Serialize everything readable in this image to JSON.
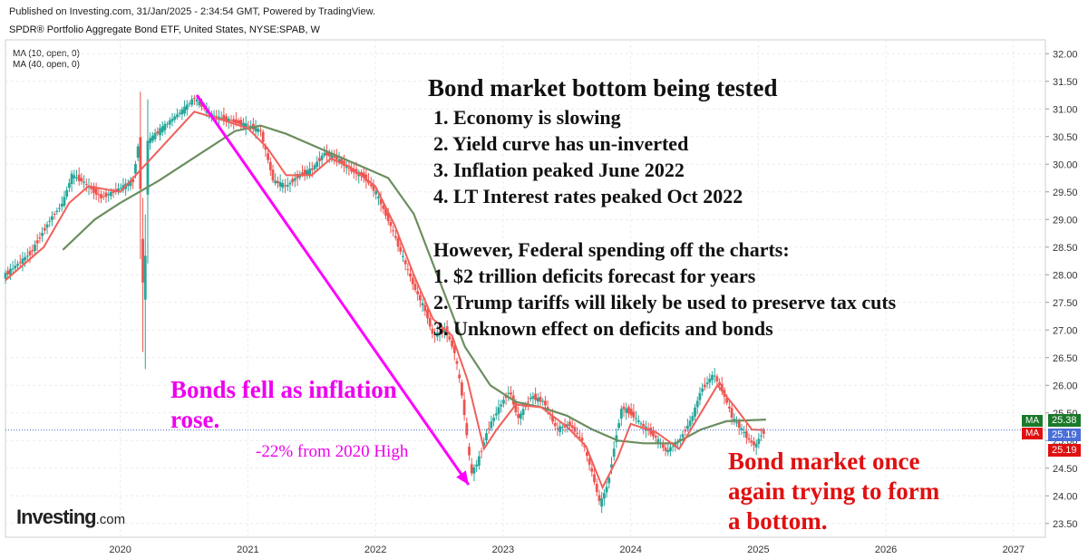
{
  "header": {
    "published": "Published on Investing.com, 31/Jan/2025 - 2:34:54 GMT, Powered by TradingView.",
    "subtitle": "SPDR® Portfolio Aggregate Bond ETF, United States, NYSE:SPAB, W"
  },
  "legend": {
    "ma10": "MA (10, open, 0)",
    "ma40": "MA (40, open, 0)"
  },
  "annotations": {
    "box_title": "Bond market bottom being tested",
    "box_points": [
      "1. Economy is slowing",
      "2. Yield curve has un-inverted",
      "3. Inflation peaked June 2022",
      "4. LT Interest rates peaked Oct 2022"
    ],
    "however_title": "However, Federal spending off the charts:",
    "however_points": [
      "1. $2 trillion deficits forecast for years",
      "2. Trump tariffs will likely be used to preserve tax cuts",
      "3. Unknown effect on deficits and bonds"
    ],
    "bonds_fell": [
      "Bonds fell as inflation",
      "rose."
    ],
    "drop": "-22% from 2020 High",
    "bottom": [
      "Bond market once",
      "again trying to form",
      "a bottom."
    ]
  },
  "logo": {
    "main": "Investing",
    "suffix": ".com"
  },
  "badges": {
    "ma_label": "MA",
    "ma40_value": "25.38",
    "price_value": "25.19",
    "ma10_value": "25.19"
  },
  "colors": {
    "up": "#26a69a",
    "down": "#ef5350",
    "ma10": "#f0605a",
    "ma40": "#6b8e5f",
    "arrow": "#ff00ff",
    "pink_text": "#ee00ee",
    "red_text": "#e01010",
    "ma40_badge": "#1a7a2a",
    "price_badge": "#4a6fd8",
    "ma10_badge": "#e01010"
  },
  "chart_data": {
    "type": "candlestick",
    "title": "SPDR® Portfolio Aggregate Bond ETF, United States, NYSE:SPAB, W",
    "ylim": [
      23.25,
      32.25
    ],
    "xlim": [
      2019.1,
      2027.25
    ],
    "y_ticks": [
      "23.50",
      "24.00",
      "24.50",
      "25.00",
      "25.50",
      "26.00",
      "26.50",
      "27.00",
      "27.50",
      "28.00",
      "28.50",
      "29.00",
      "29.50",
      "30.00",
      "30.50",
      "31.00",
      "31.50",
      "32.00"
    ],
    "x_ticks": [
      {
        "t": 2020,
        "label": "2020"
      },
      {
        "t": 2021,
        "label": "2021"
      },
      {
        "t": 2022,
        "label": "2022"
      },
      {
        "t": 2023,
        "label": "2023"
      },
      {
        "t": 2024,
        "label": "2024"
      },
      {
        "t": 2025,
        "label": "2025"
      },
      {
        "t": 2026,
        "label": "2026"
      },
      {
        "t": 2027,
        "label": "2027"
      }
    ],
    "last_price": 25.19,
    "price_path": [
      [
        2019.1,
        28.0
      ],
      [
        2019.3,
        28.4
      ],
      [
        2019.45,
        29.0
      ],
      [
        2019.55,
        29.3
      ],
      [
        2019.62,
        29.8
      ],
      [
        2019.7,
        29.7
      ],
      [
        2019.85,
        29.4
      ],
      [
        2019.95,
        29.5
      ],
      [
        2020.1,
        29.7
      ],
      [
        2020.15,
        30.5
      ],
      [
        2020.17,
        28.1
      ],
      [
        2020.19,
        27.4
      ],
      [
        2020.21,
        30.4
      ],
      [
        2020.35,
        30.7
      ],
      [
        2020.5,
        31.0
      ],
      [
        2020.58,
        31.2
      ],
      [
        2020.7,
        30.9
      ],
      [
        2020.85,
        30.8
      ],
      [
        2021.0,
        30.7
      ],
      [
        2021.1,
        30.6
      ],
      [
        2021.2,
        29.7
      ],
      [
        2021.3,
        29.6
      ],
      [
        2021.4,
        29.8
      ],
      [
        2021.5,
        29.9
      ],
      [
        2021.6,
        30.2
      ],
      [
        2021.7,
        30.1
      ],
      [
        2021.8,
        29.9
      ],
      [
        2021.9,
        29.8
      ],
      [
        2022.0,
        29.5
      ],
      [
        2022.1,
        29.0
      ],
      [
        2022.2,
        28.4
      ],
      [
        2022.3,
        27.8
      ],
      [
        2022.4,
        27.3
      ],
      [
        2022.45,
        26.9
      ],
      [
        2022.55,
        27.0
      ],
      [
        2022.62,
        26.6
      ],
      [
        2022.68,
        25.8
      ],
      [
        2022.75,
        24.4
      ],
      [
        2022.8,
        24.6
      ],
      [
        2022.88,
        25.2
      ],
      [
        2022.97,
        25.6
      ],
      [
        2023.05,
        25.9
      ],
      [
        2023.12,
        25.4
      ],
      [
        2023.22,
        25.8
      ],
      [
        2023.32,
        25.7
      ],
      [
        2023.42,
        25.2
      ],
      [
        2023.52,
        25.3
      ],
      [
        2023.62,
        25.0
      ],
      [
        2023.7,
        24.4
      ],
      [
        2023.76,
        23.85
      ],
      [
        2023.82,
        24.2
      ],
      [
        2023.88,
        25.0
      ],
      [
        2023.93,
        25.6
      ],
      [
        2024.0,
        25.5
      ],
      [
        2024.08,
        25.3
      ],
      [
        2024.18,
        25.1
      ],
      [
        2024.28,
        24.8
      ],
      [
        2024.38,
        25.0
      ],
      [
        2024.48,
        25.4
      ],
      [
        2024.55,
        25.9
      ],
      [
        2024.65,
        26.2
      ],
      [
        2024.72,
        25.9
      ],
      [
        2024.8,
        25.4
      ],
      [
        2024.87,
        25.2
      ],
      [
        2024.93,
        25.0
      ],
      [
        2024.98,
        24.9
      ],
      [
        2025.02,
        25.1
      ],
      [
        2025.06,
        25.19
      ]
    ],
    "ma10_path": [
      [
        2019.1,
        27.9
      ],
      [
        2019.4,
        28.5
      ],
      [
        2019.6,
        29.3
      ],
      [
        2019.75,
        29.6
      ],
      [
        2020.0,
        29.5
      ],
      [
        2020.2,
        30.0
      ],
      [
        2020.4,
        30.5
      ],
      [
        2020.58,
        30.95
      ],
      [
        2020.8,
        30.8
      ],
      [
        2021.0,
        30.65
      ],
      [
        2021.15,
        30.3
      ],
      [
        2021.3,
        29.8
      ],
      [
        2021.5,
        29.8
      ],
      [
        2021.65,
        30.1
      ],
      [
        2021.8,
        29.95
      ],
      [
        2022.0,
        29.6
      ],
      [
        2022.15,
        28.9
      ],
      [
        2022.3,
        28.0
      ],
      [
        2022.45,
        27.2
      ],
      [
        2022.6,
        26.9
      ],
      [
        2022.72,
        26.1
      ],
      [
        2022.85,
        24.85
      ],
      [
        2022.95,
        25.2
      ],
      [
        2023.1,
        25.65
      ],
      [
        2023.3,
        25.6
      ],
      [
        2023.5,
        25.25
      ],
      [
        2023.65,
        24.9
      ],
      [
        2023.78,
        24.15
      ],
      [
        2023.9,
        24.7
      ],
      [
        2024.0,
        25.3
      ],
      [
        2024.2,
        25.15
      ],
      [
        2024.38,
        24.85
      ],
      [
        2024.55,
        25.5
      ],
      [
        2024.68,
        26.0
      ],
      [
        2024.82,
        25.6
      ],
      [
        2024.95,
        25.2
      ],
      [
        2025.05,
        25.19
      ]
    ],
    "ma40_path": [
      [
        2019.55,
        28.45
      ],
      [
        2019.8,
        29.0
      ],
      [
        2020.0,
        29.3
      ],
      [
        2020.3,
        29.7
      ],
      [
        2020.6,
        30.15
      ],
      [
        2020.9,
        30.6
      ],
      [
        2021.1,
        30.7
      ],
      [
        2021.3,
        30.55
      ],
      [
        2021.6,
        30.25
      ],
      [
        2021.9,
        29.95
      ],
      [
        2022.1,
        29.75
      ],
      [
        2022.3,
        29.1
      ],
      [
        2022.5,
        27.9
      ],
      [
        2022.7,
        26.7
      ],
      [
        2022.9,
        26.0
      ],
      [
        2023.1,
        25.7
      ],
      [
        2023.3,
        25.6
      ],
      [
        2023.5,
        25.45
      ],
      [
        2023.7,
        25.2
      ],
      [
        2023.9,
        25.0
      ],
      [
        2024.1,
        24.95
      ],
      [
        2024.35,
        24.95
      ],
      [
        2024.55,
        25.2
      ],
      [
        2024.75,
        25.35
      ],
      [
        2025.06,
        25.38
      ]
    ]
  }
}
